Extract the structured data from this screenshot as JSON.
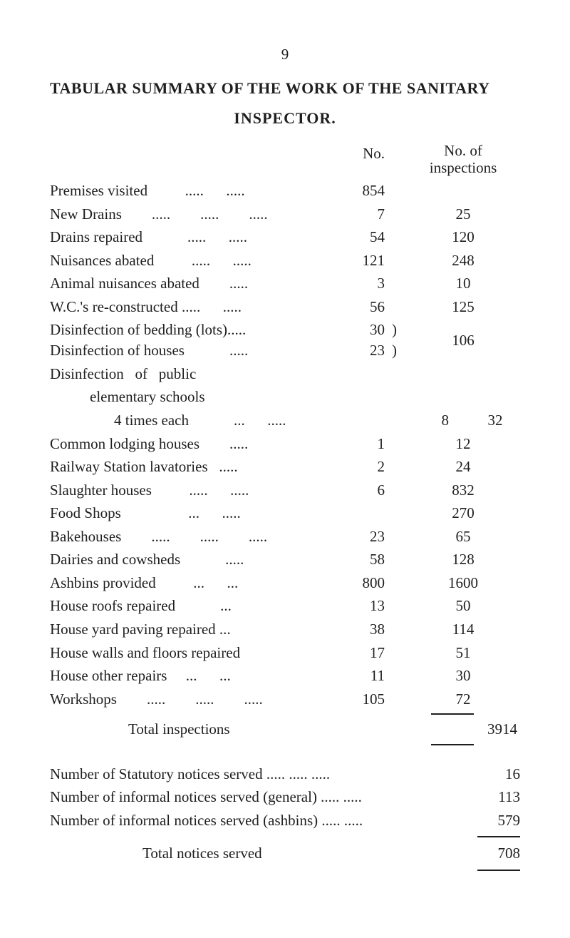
{
  "page_number": "9",
  "title_line1": "TABULAR SUMMARY OF THE WORK OF THE SANITARY",
  "title_line2": "INSPECTOR.",
  "header": {
    "no": "No.",
    "inspections_l1": "No. of",
    "inspections_l2": "inspections"
  },
  "rows": [
    {
      "label": "Premises visited          .....      .....",
      "no": "854",
      "insp": ""
    },
    {
      "label": "New Drains        .....        .....        .....",
      "no": "7",
      "insp": "25"
    },
    {
      "label": "Drains repaired            .....      .....",
      "no": "54",
      "insp": "120"
    },
    {
      "label": "Nuisances abated          .....      .....",
      "no": "121",
      "insp": "248"
    },
    {
      "label": "Animal nuisances abated        .....",
      "no": "3",
      "insp": "10"
    },
    {
      "label": "W.C.'s re-constructed .....      .....",
      "no": "56",
      "insp": "125"
    }
  ],
  "brace": {
    "row1_label": "Disinfection of bedding (lots).....",
    "row1_no": "30",
    "row2_label": "Disinfection of houses            .....",
    "row2_no": "23",
    "insp": "106"
  },
  "sub_header1": "Disinfection   of   public",
  "sub_header2": "elementary schools",
  "rows2": [
    {
      "label": "4 times each            ...      .....",
      "indent": 2,
      "no": "8",
      "insp": "32"
    },
    {
      "label": "Common lodging houses        .....",
      "indent": 0,
      "no": "1",
      "insp": "12"
    },
    {
      "label": "Railway Station lavatories   .....",
      "indent": 0,
      "no": "2",
      "insp": "24"
    },
    {
      "label": "Slaughter houses          .....      .....",
      "indent": 0,
      "no": "6",
      "insp": "832"
    },
    {
      "label": "Food Shops                  ...      .....",
      "indent": 0,
      "no": "",
      "insp": "270"
    },
    {
      "label": "Bakehouses        .....        .....        .....",
      "indent": 0,
      "no": "23",
      "insp": "65"
    },
    {
      "label": "Dairies and cowsheds            .....",
      "indent": 0,
      "no": "58",
      "insp": "128"
    },
    {
      "label": "Ashbins provided          ...      ...",
      "indent": 0,
      "no": "800",
      "insp": "1600"
    },
    {
      "label": "House roofs repaired            ...",
      "indent": 0,
      "no": "13",
      "insp": "50"
    },
    {
      "label": "House yard paving repaired ...",
      "indent": 0,
      "no": "38",
      "insp": "114"
    },
    {
      "label": "House walls and floors repaired",
      "indent": 0,
      "no": "17",
      "insp": "51"
    },
    {
      "label": "House other repairs     ...      ...",
      "indent": 0,
      "no": "11",
      "insp": "30"
    },
    {
      "label": "Workshops        .....        .....        .....",
      "indent": 0,
      "no": "105",
      "insp": "72"
    }
  ],
  "total_label": "Total inspections",
  "total_value": "3914",
  "notices": [
    {
      "label": "Number of Statutory notices served            .....      .....      .....",
      "val": "16"
    },
    {
      "label": "Number of informal notices served (general)        .....      .....",
      "val": "113"
    },
    {
      "label": "Number of informal notices served (ashbins)        .....      .....",
      "val": "579"
    }
  ],
  "notices_total_label": "Total notices served",
  "notices_total_value": "708"
}
